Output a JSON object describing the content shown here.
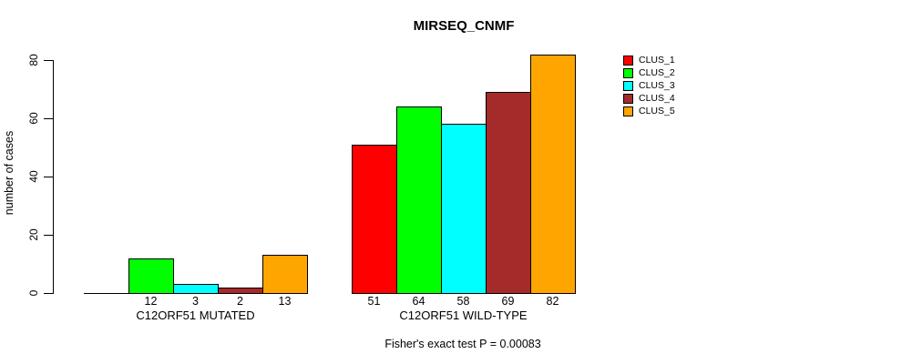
{
  "chart_data": {
    "type": "bar",
    "title": "MIRSEQ_CNMF",
    "ylabel": "number of cases",
    "ylim": [
      0,
      80
    ],
    "yticks": [
      0,
      20,
      40,
      60,
      80
    ],
    "grid": false,
    "legend_position": "top-right",
    "categories": [
      "C12ORF51 MUTATED",
      "C12ORF51 WILD-TYPE"
    ],
    "series": [
      {
        "name": "CLUS_1",
        "color": "#FF0000",
        "values": [
          0,
          51
        ]
      },
      {
        "name": "CLUS_2",
        "color": "#00FF00",
        "values": [
          12,
          64
        ]
      },
      {
        "name": "CLUS_3",
        "color": "#00FFFF",
        "values": [
          3,
          58
        ]
      },
      {
        "name": "CLUS_4",
        "color": "#A52A2A",
        "values": [
          2,
          69
        ]
      },
      {
        "name": "CLUS_5",
        "color": "#FFA500",
        "values": [
          13,
          82
        ]
      }
    ],
    "bar_value_labels": [
      [
        "",
        "12",
        "3",
        "2",
        "13"
      ],
      [
        "51",
        "64",
        "58",
        "69",
        "82"
      ]
    ],
    "annotation": "Fisher's exact test P = 0.00083",
    "axis_color": "#000000",
    "background_color": "#FFFFFF"
  }
}
